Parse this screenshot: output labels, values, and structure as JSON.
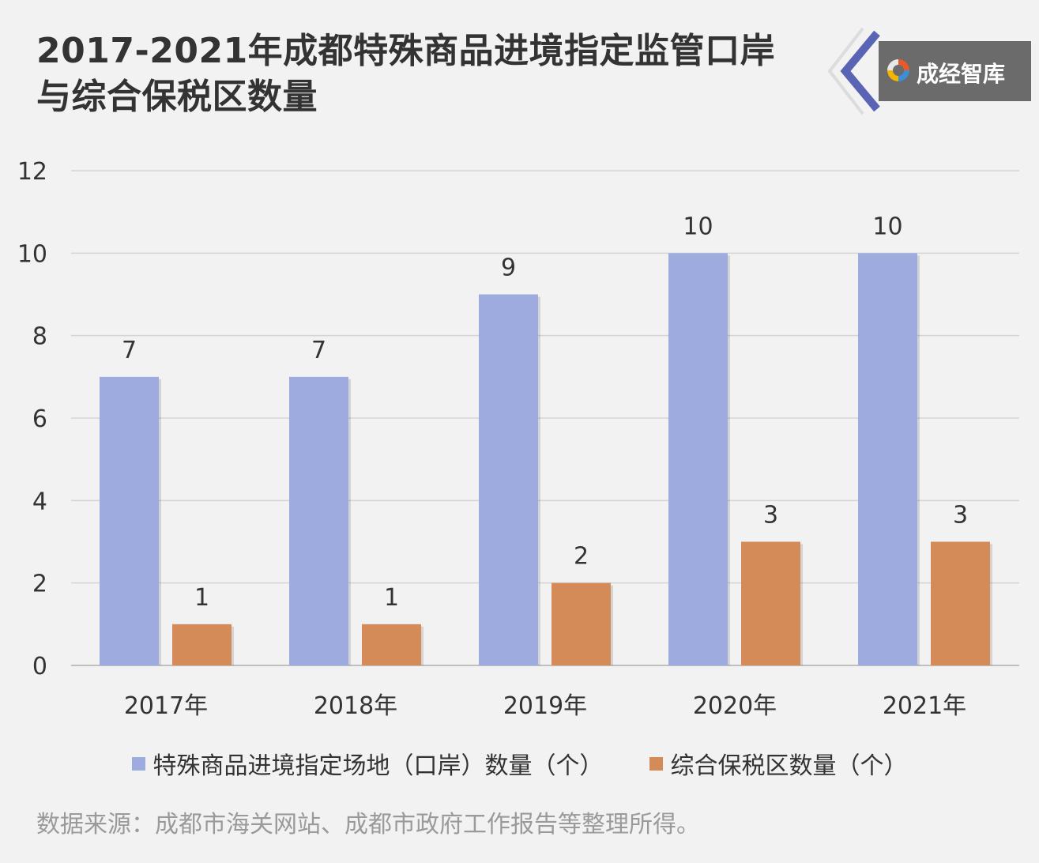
{
  "title": {
    "line1": "2017-2021年成都特殊商品进境指定监管口岸",
    "line2": "与综合保税区数量"
  },
  "logo": {
    "text": "成经智库",
    "icon": "brand-swirl-icon"
  },
  "chart_data": {
    "type": "bar",
    "categories": [
      "2017年",
      "2018年",
      "2019年",
      "2020年",
      "2021年"
    ],
    "series": [
      {
        "name": "特殊商品进境指定场地（口岸）数量（个）",
        "values": [
          7,
          7,
          9,
          10,
          10
        ],
        "color": "#9dabde"
      },
      {
        "name": "综合保税区数量（个）",
        "values": [
          1,
          1,
          2,
          3,
          3
        ],
        "color": "#d58b57"
      }
    ],
    "ylim": [
      0,
      12
    ],
    "yticks": [
      0,
      2,
      4,
      6,
      8,
      10,
      12
    ],
    "grid": true,
    "legend_position": "bottom",
    "data_labels": true
  },
  "source": "数据来源：成都市海关网站、成都市政府工作报告等整理所得。"
}
